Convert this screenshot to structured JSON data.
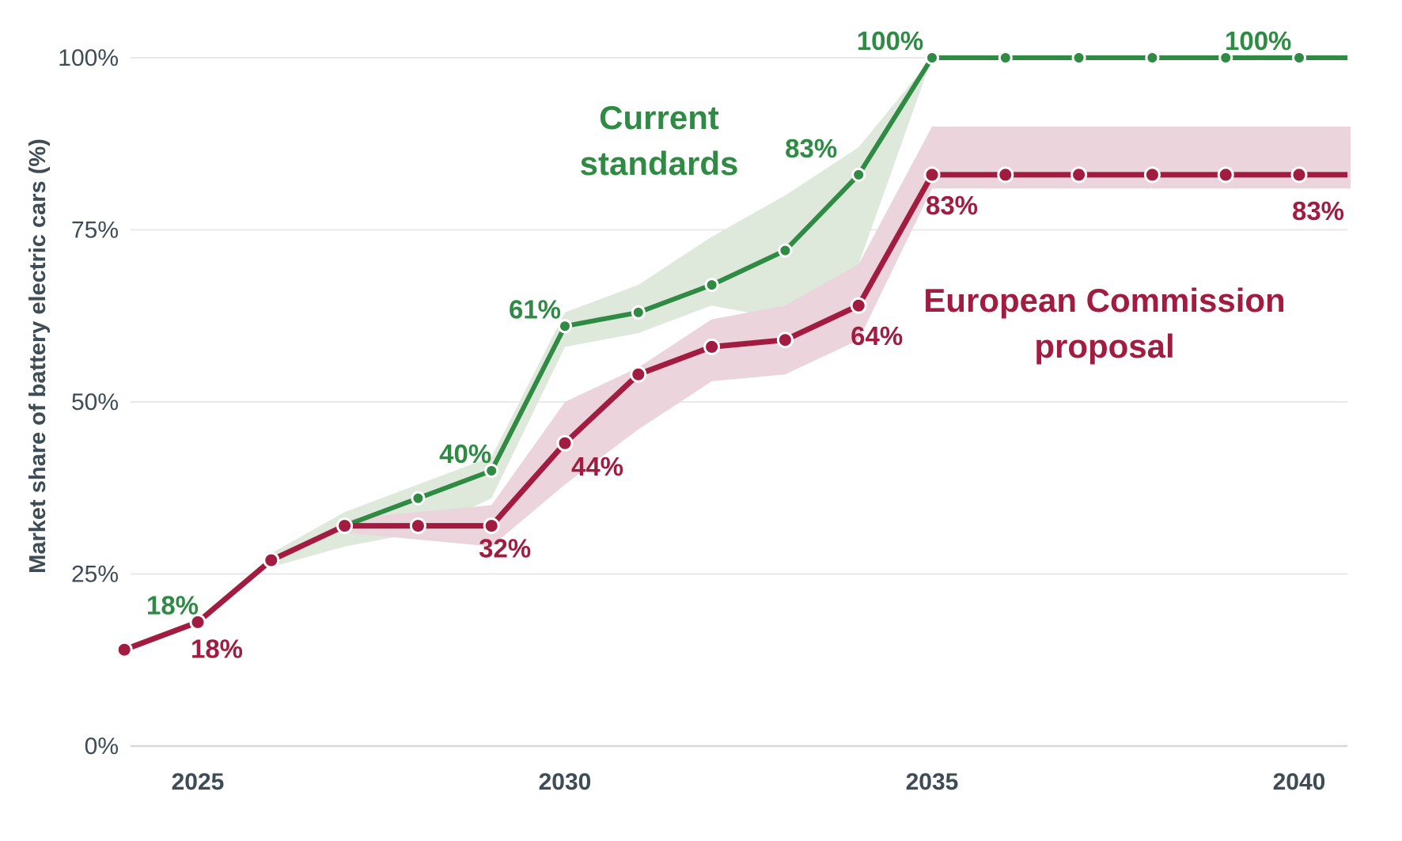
{
  "page": {
    "background": "#FFFFFF"
  },
  "chart_data": {
    "type": "line",
    "title": "",
    "xlabel": "",
    "ylabel": "Market share of battery electric cars (%)",
    "grid": "horizontal",
    "legend_position": "inline-annotations",
    "axis_colors": {
      "text": "#3E4C55",
      "grid": "#E2E2E2",
      "baseline": "#D8D8D8"
    },
    "x_axis": {
      "ticks": [
        2025,
        2030,
        2035,
        2040
      ],
      "min": 2024,
      "max": 2040.7
    },
    "y_axis": {
      "min": 0,
      "max": 100,
      "ticks": [
        {
          "value": 0,
          "label": "0%"
        },
        {
          "value": 25,
          "label": "25%"
        },
        {
          "value": 50,
          "label": "50%"
        },
        {
          "value": 75,
          "label": "75%"
        },
        {
          "value": 100,
          "label": "100%"
        }
      ]
    },
    "x": [
      2024,
      2025,
      2026,
      2027,
      2028,
      2029,
      2030,
      2031,
      2032,
      2033,
      2034,
      2035,
      2036,
      2037,
      2038,
      2039,
      2040
    ],
    "series": [
      {
        "name": "Current standards",
        "color": "#2F8B44",
        "band_color": "#DEE8DB",
        "values": [
          14,
          18,
          27,
          32,
          36,
          40,
          61,
          63,
          67,
          72,
          83,
          100,
          100,
          100,
          100,
          100,
          100
        ],
        "band": {
          "x": [
            2026,
            2027,
            2028,
            2029,
            2030,
            2031,
            2032,
            2033,
            2034,
            2035
          ],
          "upper": [
            28,
            34,
            38,
            42,
            63,
            67,
            74,
            80,
            87,
            100
          ],
          "lower": [
            26,
            29,
            31,
            36,
            58,
            60,
            64,
            62,
            70,
            100
          ]
        },
        "point_labels": [
          {
            "x": 2025,
            "text": "18%",
            "dx": -32,
            "dy": -10
          },
          {
            "x": 2029,
            "text": "40%",
            "dx": -33,
            "dy": -10
          },
          {
            "x": 2030,
            "text": "61%",
            "dx": -38,
            "dy": -10
          },
          {
            "x": 2034,
            "text": "83%",
            "dx": -60,
            "dy": -22
          },
          {
            "x": 2035,
            "text": "100%",
            "dx": -53,
            "dy": -10
          },
          {
            "x": 2039,
            "text": "100%",
            "dx": 41,
            "dy": -10
          }
        ],
        "annotation": {
          "lines": [
            "Current",
            "standards"
          ],
          "x": 833,
          "y": 163
        }
      },
      {
        "name": "European Commission proposal",
        "color": "#A11C40",
        "band_color": "#ECD4DC",
        "values": [
          14,
          18,
          27,
          32,
          32,
          32,
          44,
          54,
          58,
          59,
          64,
          83,
          83,
          83,
          83,
          83,
          83
        ],
        "band": {
          "x": [
            2027,
            2028,
            2029,
            2030,
            2031,
            2032,
            2033,
            2034,
            2035,
            2040.7
          ],
          "upper": [
            33,
            34,
            35,
            50,
            55,
            62,
            64,
            70,
            90,
            90
          ],
          "lower": [
            31,
            30,
            29,
            38,
            46,
            53,
            54,
            59,
            81,
            81
          ]
        },
        "point_labels": [
          {
            "x": 2025,
            "text": "18%",
            "dx": 24,
            "dy": 45
          },
          {
            "x": 2029,
            "text": "32%",
            "dx": 17,
            "dy": 40
          },
          {
            "x": 2030,
            "text": "44%",
            "dx": 41,
            "dy": 41
          },
          {
            "x": 2034,
            "text": "64%",
            "dx": 23,
            "dy": 50
          },
          {
            "x": 2035,
            "text": "83%",
            "dx": 25,
            "dy": 50
          },
          {
            "x": 2040,
            "text": "83%",
            "dx": 24,
            "dy": 57
          }
        ],
        "annotation": {
          "lines": [
            "European Commission",
            "proposal"
          ],
          "x": 1396,
          "y": 394
        }
      }
    ]
  }
}
